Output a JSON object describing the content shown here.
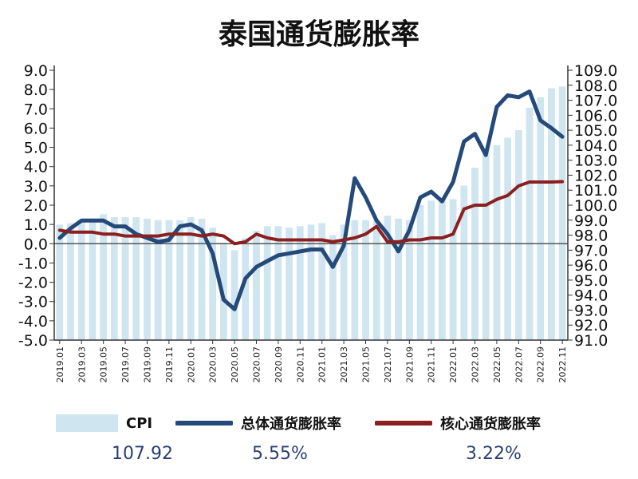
{
  "chart_data": {
    "type": "bar+line",
    "title": "泰国通货膨胀率",
    "left_axis": {
      "min": -5.0,
      "max": 9.0,
      "ticks": [
        "9.0",
        "8.0",
        "7.0",
        "6.0",
        "5.0",
        "4.0",
        "3.0",
        "2.0",
        "1.0",
        "0.0",
        "-1.0",
        "-2.0",
        "-3.0",
        "-4.0",
        "-5.0"
      ]
    },
    "right_axis": {
      "min": 91.0,
      "max": 109.0,
      "ticks": [
        "109.0",
        "108.0",
        "107.0",
        "106.0",
        "105.0",
        "104.0",
        "103.0",
        "102.0",
        "101.0",
        "100.0",
        "99.0",
        "98.0",
        "97.0",
        "96.0",
        "95.0",
        "94.0",
        "93.0",
        "92.0",
        "91.0"
      ]
    },
    "x_tick_labels": [
      "2019.01",
      "2019.03",
      "2019.05",
      "2019.07",
      "2019.09",
      "2019.11",
      "2020.01",
      "2020.03",
      "2020.05",
      "2020.07",
      "2020.09",
      "2020.11",
      "2021.01",
      "2021.03",
      "2021.05",
      "2021.07",
      "2021.09",
      "2021.11",
      "2022.01",
      "2022.03",
      "2022.05",
      "2022.07",
      "2022.09",
      "2022.11"
    ],
    "months": [
      "2019.01",
      "2019.02",
      "2019.03",
      "2019.04",
      "2019.05",
      "2019.06",
      "2019.07",
      "2019.08",
      "2019.09",
      "2019.10",
      "2019.11",
      "2019.12",
      "2020.01",
      "2020.02",
      "2020.03",
      "2020.04",
      "2020.05",
      "2020.06",
      "2020.07",
      "2020.08",
      "2020.09",
      "2020.10",
      "2020.11",
      "2020.12",
      "2021.01",
      "2021.02",
      "2021.03",
      "2021.04",
      "2021.05",
      "2021.06",
      "2021.07",
      "2021.08",
      "2021.09",
      "2021.10",
      "2021.11",
      "2021.12",
      "2022.01",
      "2022.02",
      "2022.03",
      "2022.04",
      "2022.05",
      "2022.06",
      "2022.07",
      "2022.08",
      "2022.09",
      "2022.10",
      "2022.11"
    ],
    "series": [
      {
        "name": "CPI",
        "axis": "right",
        "kind": "bar",
        "color": "#cfe5f0",
        "values": [
          98.7,
          98.8,
          99.0,
          99.1,
          99.4,
          99.2,
          99.2,
          99.2,
          99.1,
          99.0,
          99.0,
          99.0,
          99.2,
          99.1,
          98.5,
          97.5,
          97.0,
          97.8,
          98.3,
          98.6,
          98.6,
          98.5,
          98.6,
          98.7,
          98.8,
          98.0,
          98.7,
          99.0,
          99.0,
          99.0,
          99.3,
          99.1,
          99.0,
          100.0,
          100.3,
          100.5,
          100.4,
          101.3,
          102.5,
          103.5,
          104.0,
          104.5,
          105.0,
          106.5,
          107.2,
          107.8,
          107.92
        ]
      },
      {
        "name": "总体通货膨胀率",
        "axis": "left",
        "kind": "line",
        "color": "#254a7a",
        "values": [
          0.3,
          0.8,
          1.2,
          1.2,
          1.2,
          0.9,
          0.9,
          0.5,
          0.3,
          0.1,
          0.2,
          0.9,
          1.0,
          0.7,
          -0.5,
          -2.9,
          -3.4,
          -1.8,
          -1.2,
          -0.9,
          -0.6,
          -0.5,
          -0.4,
          -0.3,
          -0.3,
          -1.2,
          -0.1,
          3.4,
          2.4,
          1.2,
          0.5,
          -0.4,
          0.7,
          2.4,
          2.7,
          2.2,
          3.2,
          5.3,
          5.7,
          4.6,
          7.1,
          7.7,
          7.6,
          7.9,
          6.4,
          6.0,
          5.55
        ]
      },
      {
        "name": "核心通货膨胀率",
        "axis": "left",
        "kind": "line",
        "color": "#8c1f1f",
        "values": [
          0.7,
          0.6,
          0.6,
          0.6,
          0.5,
          0.5,
          0.4,
          0.4,
          0.4,
          0.4,
          0.5,
          0.5,
          0.5,
          0.4,
          0.5,
          0.4,
          0.0,
          0.1,
          0.5,
          0.3,
          0.2,
          0.2,
          0.2,
          0.2,
          0.2,
          0.1,
          0.2,
          0.3,
          0.5,
          0.9,
          0.1,
          0.1,
          0.2,
          0.2,
          0.3,
          0.3,
          0.5,
          1.8,
          2.0,
          2.0,
          2.3,
          2.5,
          3.0,
          3.2,
          3.2,
          3.2,
          3.22
        ]
      }
    ],
    "legend": [
      {
        "label": "CPI",
        "value": "107.92"
      },
      {
        "label": "总体通货膨胀率",
        "value": "5.55%"
      },
      {
        "label": "核心通货膨胀率",
        "value": "3.22%"
      }
    ],
    "legend_position": "bottom",
    "grid": false
  }
}
